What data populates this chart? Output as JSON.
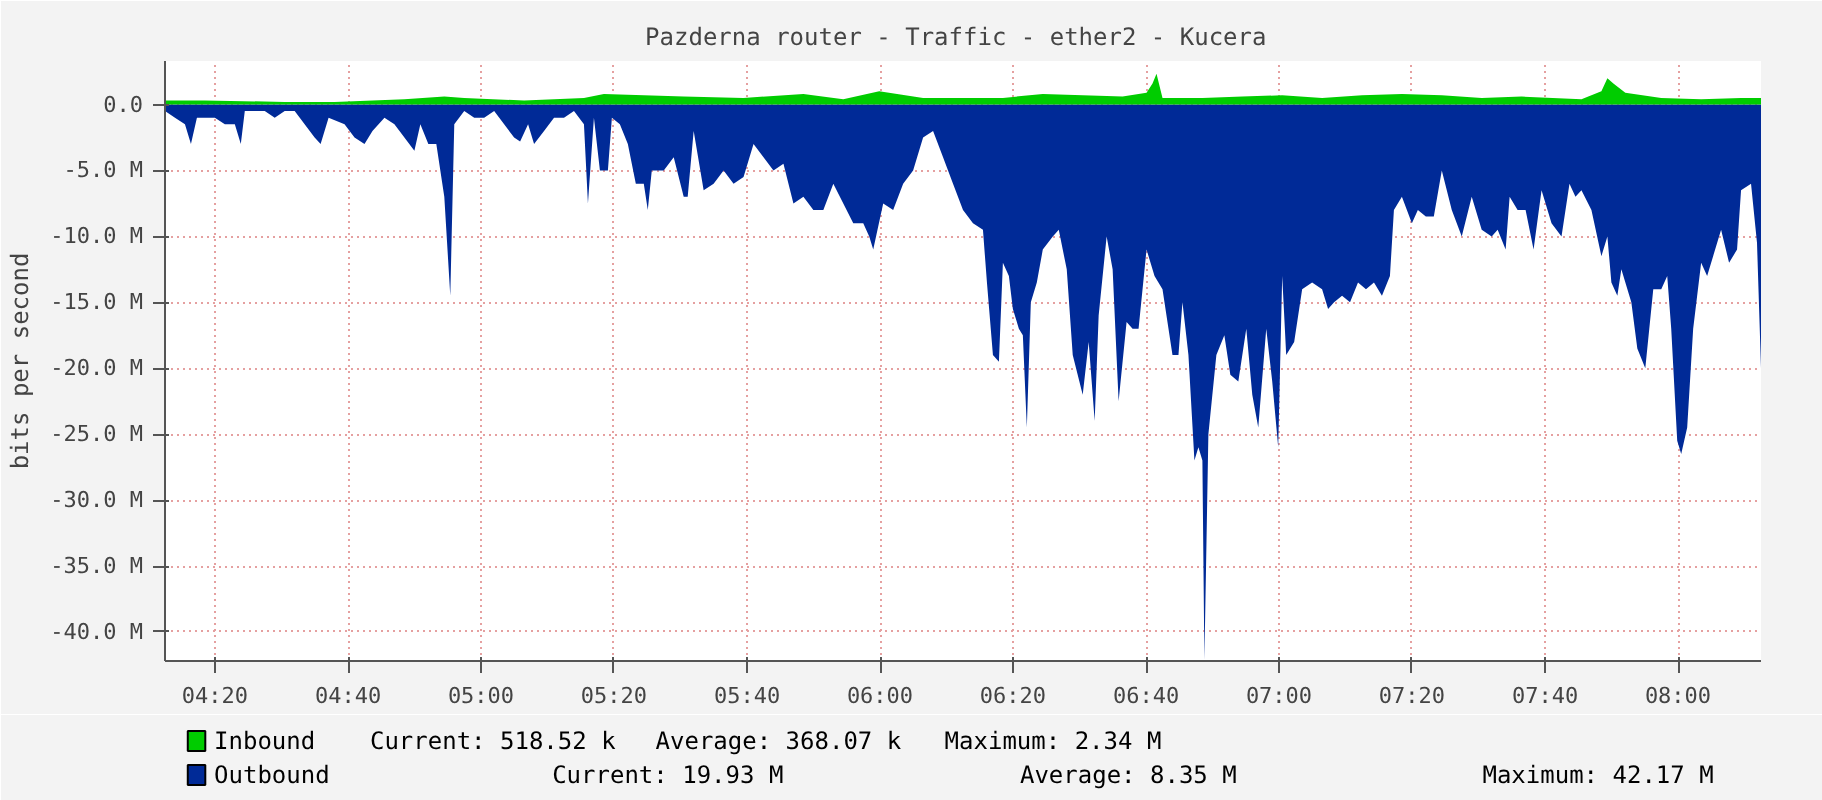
{
  "chart_data": {
    "type": "area",
    "title": "Pazderna router  - Traffic - ether2 - Kucera",
    "ylabel": "bits per second",
    "xlim": [
      4.208,
      8.208
    ],
    "ylim": [
      -42.2,
      3.3
    ],
    "xticks": [
      {
        "value": 4.333,
        "label": "04:20"
      },
      {
        "value": 4.667,
        "label": "04:40"
      },
      {
        "value": 5.0,
        "label": "05:00"
      },
      {
        "value": 5.333,
        "label": "05:20"
      },
      {
        "value": 5.667,
        "label": "05:40"
      },
      {
        "value": 6.0,
        "label": "06:00"
      },
      {
        "value": 6.333,
        "label": "06:20"
      },
      {
        "value": 6.667,
        "label": "06:40"
      },
      {
        "value": 7.0,
        "label": "07:00"
      },
      {
        "value": 7.333,
        "label": "07:20"
      },
      {
        "value": 7.667,
        "label": "07:40"
      },
      {
        "value": 8.0,
        "label": "08:00"
      }
    ],
    "yticks": [
      {
        "value": 0,
        "label": "0.0"
      },
      {
        "value": -5,
        "label": "-5.0 M"
      },
      {
        "value": -10,
        "label": "-10.0 M"
      },
      {
        "value": -15,
        "label": "-15.0 M"
      },
      {
        "value": -20,
        "label": "-20.0 M"
      },
      {
        "value": -25,
        "label": "-25.0 M"
      },
      {
        "value": -30,
        "label": "-30.0 M"
      },
      {
        "value": -35,
        "label": "-35.0 M"
      },
      {
        "value": -40,
        "label": "-40.0 M"
      }
    ],
    "grid": true,
    "legend": "bottom left",
    "series": [
      {
        "name": "Outbound",
        "color": "#002a97",
        "x": [
          4.208,
          4.233,
          4.258,
          4.273,
          4.288,
          4.308,
          4.333,
          4.358,
          4.383,
          4.398,
          4.408,
          4.433,
          4.458,
          4.483,
          4.508,
          4.533,
          4.558,
          4.583,
          4.598,
          4.618,
          4.658,
          4.683,
          4.708,
          4.728,
          4.758,
          4.783,
          4.808,
          4.833,
          4.848,
          4.868,
          4.888,
          4.908,
          4.923,
          4.933,
          4.958,
          4.983,
          5.008,
          5.033,
          5.058,
          5.083,
          5.098,
          5.118,
          5.133,
          5.158,
          5.183,
          5.208,
          5.233,
          5.258,
          5.268,
          5.283,
          5.298,
          5.318,
          5.328,
          5.348,
          5.368,
          5.388,
          5.408,
          5.418,
          5.428,
          5.458,
          5.483,
          5.508,
          5.518,
          5.533,
          5.558,
          5.583,
          5.608,
          5.633,
          5.658,
          5.683,
          5.708,
          5.733,
          5.758,
          5.783,
          5.808,
          5.833,
          5.858,
          5.883,
          5.908,
          5.933,
          5.958,
          5.973,
          5.983,
          6.008,
          6.033,
          6.058,
          6.083,
          6.108,
          6.133,
          6.158,
          6.183,
          6.208,
          6.233,
          6.258,
          6.268,
          6.283,
          6.298,
          6.308,
          6.323,
          6.333,
          6.348,
          6.358,
          6.368,
          6.378,
          6.393,
          6.408,
          6.433,
          6.448,
          6.468,
          6.483,
          6.508,
          6.523,
          6.538,
          6.548,
          6.568,
          6.583,
          6.598,
          6.618,
          6.633,
          6.648,
          6.668,
          6.688,
          6.708,
          6.733,
          6.748,
          6.758,
          6.773,
          6.788,
          6.798,
          6.808,
          6.813,
          6.823,
          6.843,
          6.863,
          6.878,
          6.898,
          6.918,
          6.933,
          6.948,
          6.968,
          6.983,
          6.998,
          7.008,
          7.018,
          7.038,
          7.058,
          7.083,
          7.108,
          7.123,
          7.138,
          7.158,
          7.178,
          7.198,
          7.218,
          7.238,
          7.258,
          7.278,
          7.288,
          7.308,
          7.333,
          7.348,
          7.368,
          7.388,
          7.408,
          7.433,
          7.458,
          7.483,
          7.508,
          7.533,
          7.548,
          7.568,
          7.578,
          7.598,
          7.618,
          7.638,
          7.658,
          7.683,
          7.708,
          7.728,
          7.743,
          7.758,
          7.783,
          7.808,
          7.823,
          7.833,
          7.848,
          7.858,
          7.883,
          7.898,
          7.918,
          7.938,
          7.958,
          7.973,
          7.983,
          7.998,
          8.008,
          8.023,
          8.038,
          8.058,
          8.073,
          8.088,
          8.108,
          8.128,
          8.148,
          8.158,
          8.183,
          8.198,
          8.208
        ],
        "values": [
          -0.5,
          -1,
          -1.5,
          -3,
          -1,
          -1,
          -1,
          -1.5,
          -1.5,
          -3,
          -0.5,
          -0.5,
          -0.5,
          -1,
          -0.5,
          -0.5,
          -1.5,
          -2.5,
          -3,
          -1,
          -1.5,
          -2.5,
          -3,
          -2,
          -1,
          -1.5,
          -2.5,
          -3.5,
          -1.5,
          -3,
          -3,
          -7,
          -14.5,
          -1.5,
          -0.5,
          -1,
          -1,
          -0.5,
          -1.5,
          -2.5,
          -2.8,
          -1.5,
          -3,
          -2,
          -1,
          -1,
          -0.5,
          -1.5,
          -7.5,
          -1,
          -5,
          -5,
          -1,
          -1.5,
          -3,
          -6,
          -6,
          -8,
          -5,
          -5,
          -4,
          -7,
          -7,
          -2,
          -6.5,
          -6,
          -5,
          -6,
          -5.5,
          -3,
          -4,
          -5,
          -4.5,
          -7.5,
          -7,
          -8,
          -8,
          -6,
          -7.5,
          -9,
          -9,
          -10,
          -11,
          -7.5,
          -8,
          -6,
          -5,
          -2.5,
          -2,
          -4,
          -6,
          -8,
          -9,
          -9.5,
          -13.5,
          -19,
          -19.5,
          -12,
          -13,
          -15.5,
          -17,
          -17.5,
          -24.5,
          -15,
          -13.5,
          -11,
          -10,
          -9.5,
          -12.5,
          -19,
          -22,
          -18,
          -24,
          -16,
          -10,
          -12.5,
          -22.5,
          -16.5,
          -17,
          -17,
          -11,
          -13,
          -14,
          -19,
          -19,
          -15,
          -19,
          -27,
          -26,
          -27,
          -42.1,
          -25,
          -19,
          -17.5,
          -20.5,
          -21,
          -17,
          -22,
          -24.5,
          -17,
          -21,
          -26,
          -13,
          -19,
          -18,
          -14,
          -13.5,
          -14,
          -15.5,
          -15,
          -14.5,
          -15,
          -13.5,
          -14,
          -13.5,
          -14.5,
          -13,
          -8,
          -7,
          -9,
          -8,
          -8.5,
          -8.5,
          -5,
          -8,
          -10,
          -7,
          -9.5,
          -10,
          -9.5,
          -11,
          -7,
          -8,
          -8,
          -11,
          -6.5,
          -9,
          -10,
          -6,
          -7,
          -6.5,
          -8,
          -11.5,
          -10,
          -13.5,
          -14.5,
          -12.5,
          -15,
          -18.5,
          -20,
          -14,
          -14,
          -13,
          -17,
          -25.5,
          -26.5,
          -24.5,
          -17,
          -12,
          -13,
          -11.5,
          -9.5,
          -12,
          -11,
          -6.5,
          -6,
          -10.5,
          -20
        ]
      },
      {
        "name": "Inbound",
        "color": "#00cc00",
        "x": [
          4.208,
          4.308,
          4.508,
          4.633,
          4.808,
          4.908,
          4.958,
          5.108,
          5.258,
          5.308,
          5.408,
          5.508,
          5.658,
          5.808,
          5.908,
          5.998,
          6.108,
          6.308,
          6.408,
          6.508,
          6.608,
          6.668,
          6.683,
          6.693,
          6.708,
          6.808,
          6.908,
          7.008,
          7.108,
          7.208,
          7.308,
          7.408,
          7.508,
          7.608,
          7.758,
          7.808,
          7.823,
          7.838,
          7.868,
          7.958,
          8.058,
          8.158,
          8.208
        ],
        "values": [
          0.3,
          0.3,
          0.2,
          0.2,
          0.4,
          0.6,
          0.5,
          0.3,
          0.5,
          0.8,
          0.7,
          0.6,
          0.5,
          0.8,
          0.4,
          1.0,
          0.5,
          0.5,
          0.8,
          0.7,
          0.6,
          0.9,
          1.6,
          2.34,
          0.5,
          0.5,
          0.6,
          0.7,
          0.5,
          0.7,
          0.8,
          0.7,
          0.5,
          0.6,
          0.4,
          1.0,
          2.0,
          1.6,
          0.9,
          0.5,
          0.4,
          0.5,
          0.5
        ]
      }
    ],
    "annotations": [
      "Current:  518.52 k",
      "Average:  368.07 k",
      "Maximum:    2.34 M",
      "Current:   19.93 M",
      "Average:    8.35 M",
      "Maximum:   42.17 M"
    ]
  }
}
